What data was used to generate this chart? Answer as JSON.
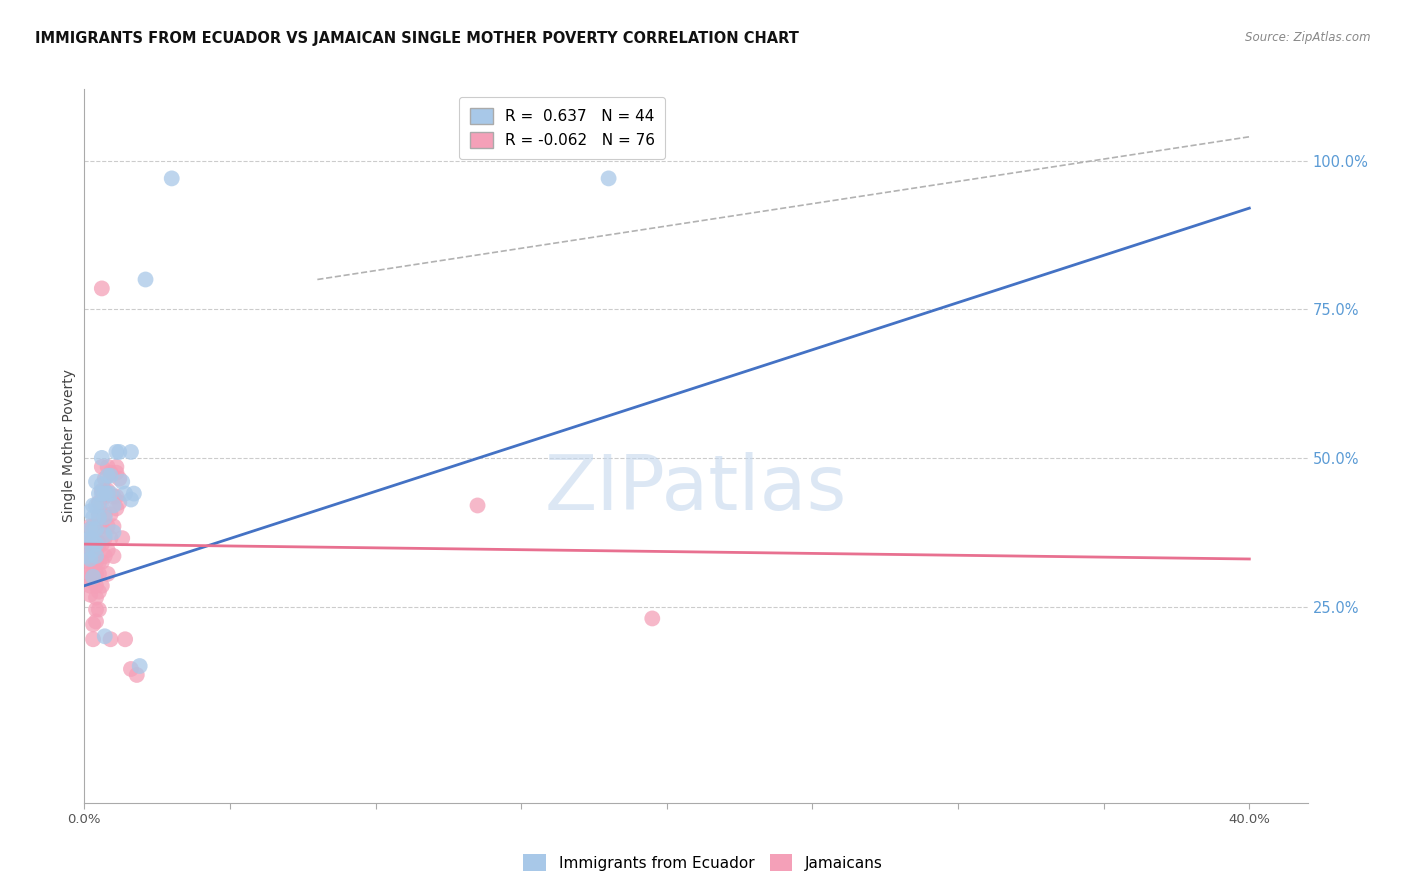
{
  "title": "IMMIGRANTS FROM ECUADOR VS JAMAICAN SINGLE MOTHER POVERTY CORRELATION CHART",
  "source": "Source: ZipAtlas.com",
  "ylabel": "Single Mother Poverty",
  "right_yticks": [
    "100.0%",
    "75.0%",
    "50.0%",
    "25.0%"
  ],
  "right_ytick_vals": [
    1.0,
    0.75,
    0.5,
    0.25
  ],
  "legend": [
    {
      "label": "R =  0.637   N = 44",
      "color": "#a8c8e8"
    },
    {
      "label": "R = -0.062   N = 76",
      "color": "#f4a0b8"
    }
  ],
  "ecuador_points": [
    [
      0.001,
      0.335
    ],
    [
      0.001,
      0.36
    ],
    [
      0.002,
      0.41
    ],
    [
      0.002,
      0.38
    ],
    [
      0.002,
      0.33
    ],
    [
      0.002,
      0.365
    ],
    [
      0.003,
      0.3
    ],
    [
      0.003,
      0.42
    ],
    [
      0.003,
      0.38
    ],
    [
      0.003,
      0.4
    ],
    [
      0.003,
      0.36
    ],
    [
      0.003,
      0.345
    ],
    [
      0.004,
      0.46
    ],
    [
      0.004,
      0.42
    ],
    [
      0.004,
      0.38
    ],
    [
      0.004,
      0.355
    ],
    [
      0.004,
      0.335
    ],
    [
      0.005,
      0.42
    ],
    [
      0.005,
      0.4
    ],
    [
      0.005,
      0.44
    ],
    [
      0.006,
      0.5
    ],
    [
      0.006,
      0.455
    ],
    [
      0.006,
      0.44
    ],
    [
      0.007,
      0.44
    ],
    [
      0.007,
      0.37
    ],
    [
      0.007,
      0.4
    ],
    [
      0.007,
      0.2
    ],
    [
      0.008,
      0.44
    ],
    [
      0.008,
      0.47
    ],
    [
      0.009,
      0.47
    ],
    [
      0.009,
      0.44
    ],
    [
      0.01,
      0.375
    ],
    [
      0.01,
      0.42
    ],
    [
      0.011,
      0.51
    ],
    [
      0.012,
      0.51
    ],
    [
      0.013,
      0.46
    ],
    [
      0.014,
      0.44
    ],
    [
      0.016,
      0.43
    ],
    [
      0.016,
      0.51
    ],
    [
      0.017,
      0.44
    ],
    [
      0.019,
      0.15
    ],
    [
      0.021,
      0.8
    ],
    [
      0.03,
      0.97
    ],
    [
      0.18,
      0.97
    ]
  ],
  "jamaican_points": [
    [
      0.001,
      0.355
    ],
    [
      0.001,
      0.335
    ],
    [
      0.001,
      0.315
    ],
    [
      0.001,
      0.295
    ],
    [
      0.002,
      0.385
    ],
    [
      0.002,
      0.365
    ],
    [
      0.002,
      0.345
    ],
    [
      0.002,
      0.325
    ],
    [
      0.002,
      0.305
    ],
    [
      0.002,
      0.285
    ],
    [
      0.002,
      0.27
    ],
    [
      0.003,
      0.385
    ],
    [
      0.003,
      0.365
    ],
    [
      0.003,
      0.355
    ],
    [
      0.003,
      0.335
    ],
    [
      0.003,
      0.325
    ],
    [
      0.003,
      0.305
    ],
    [
      0.003,
      0.295
    ],
    [
      0.003,
      0.22
    ],
    [
      0.003,
      0.195
    ],
    [
      0.004,
      0.375
    ],
    [
      0.004,
      0.365
    ],
    [
      0.004,
      0.355
    ],
    [
      0.004,
      0.345
    ],
    [
      0.004,
      0.325
    ],
    [
      0.004,
      0.305
    ],
    [
      0.004,
      0.285
    ],
    [
      0.004,
      0.265
    ],
    [
      0.004,
      0.245
    ],
    [
      0.004,
      0.225
    ],
    [
      0.005,
      0.425
    ],
    [
      0.005,
      0.405
    ],
    [
      0.005,
      0.385
    ],
    [
      0.005,
      0.355
    ],
    [
      0.005,
      0.325
    ],
    [
      0.005,
      0.305
    ],
    [
      0.005,
      0.275
    ],
    [
      0.005,
      0.245
    ],
    [
      0.006,
      0.485
    ],
    [
      0.006,
      0.445
    ],
    [
      0.006,
      0.425
    ],
    [
      0.006,
      0.385
    ],
    [
      0.006,
      0.355
    ],
    [
      0.006,
      0.325
    ],
    [
      0.006,
      0.285
    ],
    [
      0.006,
      0.785
    ],
    [
      0.007,
      0.445
    ],
    [
      0.007,
      0.405
    ],
    [
      0.007,
      0.365
    ],
    [
      0.007,
      0.335
    ],
    [
      0.007,
      0.465
    ],
    [
      0.007,
      0.435
    ],
    [
      0.008,
      0.385
    ],
    [
      0.008,
      0.345
    ],
    [
      0.008,
      0.305
    ],
    [
      0.008,
      0.485
    ],
    [
      0.008,
      0.445
    ],
    [
      0.009,
      0.405
    ],
    [
      0.009,
      0.365
    ],
    [
      0.009,
      0.195
    ],
    [
      0.009,
      0.475
    ],
    [
      0.01,
      0.435
    ],
    [
      0.01,
      0.385
    ],
    [
      0.01,
      0.335
    ],
    [
      0.011,
      0.485
    ],
    [
      0.011,
      0.435
    ],
    [
      0.011,
      0.475
    ],
    [
      0.011,
      0.415
    ],
    [
      0.012,
      0.465
    ],
    [
      0.012,
      0.425
    ],
    [
      0.013,
      0.365
    ],
    [
      0.014,
      0.195
    ],
    [
      0.016,
      0.145
    ],
    [
      0.018,
      0.135
    ],
    [
      0.135,
      0.42
    ],
    [
      0.195,
      0.23
    ]
  ],
  "ecuador_line": {
    "x": [
      0.0,
      0.4
    ],
    "y": [
      0.285,
      0.92
    ]
  },
  "jamaican_line": {
    "x": [
      0.0,
      0.4
    ],
    "y": [
      0.355,
      0.33
    ]
  },
  "diagonal_line": {
    "x": [
      0.08,
      0.4
    ],
    "y": [
      0.8,
      1.04
    ]
  },
  "bg_color": "#ffffff",
  "grid_color": "#cccccc",
  "ecuador_color": "#a8c8e8",
  "jamaican_color": "#f4a0b8",
  "ecuador_line_color": "#4472c4",
  "jamaican_line_color": "#e87090",
  "diagonal_color": "#aaaaaa",
  "title_fontsize": 10.5,
  "axis_label_fontsize": 10,
  "tick_fontsize": 9.5,
  "right_tick_color": "#5b9bd5",
  "watermark_text": "ZIPatlas",
  "watermark_color": "#c5d8ee",
  "xlim": [
    0.0,
    0.42
  ],
  "ylim": [
    -0.08,
    1.12
  ],
  "xtick_positions": [
    0.0,
    0.05,
    0.1,
    0.15,
    0.2,
    0.25,
    0.3,
    0.35,
    0.4
  ],
  "xtick_labels": [
    "0.0%",
    "",
    "",
    "",
    "",
    "",
    "",
    "",
    "40.0%"
  ]
}
